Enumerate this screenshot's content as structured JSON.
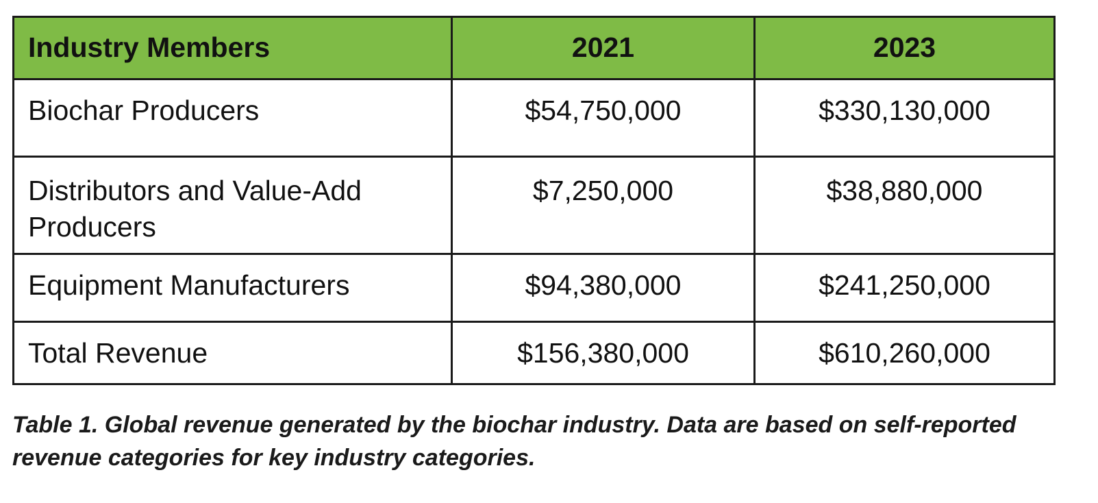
{
  "table": {
    "headers": [
      "Industry Members",
      "2021",
      "2023"
    ],
    "rows": [
      {
        "member": "Biochar Producers",
        "y2021": "$54,750,000",
        "y2023": "$330,130,000"
      },
      {
        "member": "Distributors and Value-Add Producers",
        "y2021": "$7,250,000",
        "y2023": "$38,880,000"
      },
      {
        "member": "Equipment Manufacturers",
        "y2021": "$94,380,000",
        "y2023": "$241,250,000"
      },
      {
        "member": "Total Revenue",
        "y2021": "$156,380,000",
        "y2023": "$610,260,000"
      }
    ],
    "header_color": "#7fbb46"
  },
  "caption": "Table 1. Global revenue generated by the biochar industry. Data are based on self-reported revenue categories for key industry categories."
}
